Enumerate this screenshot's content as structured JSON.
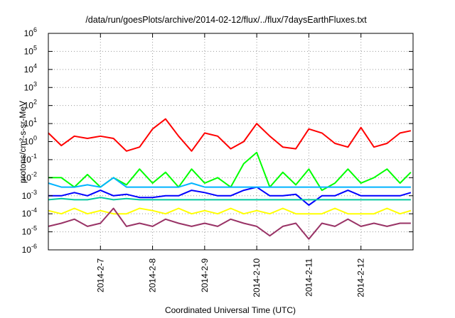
{
  "chart_data": {
    "type": "line",
    "title": "/data/run/goesPlots/archive/2014-02-12/flux/../flux/7daysEarthFluxes.txt",
    "xlabel": "Coordinated Universal Time (UTC)",
    "ylabel": "protons/cm²-s-sr-MeV",
    "yscale": "log",
    "ylim": [
      1e-06,
      1000000.0
    ],
    "y_tick_labels": [
      {
        "base": "10",
        "exp": "-6"
      },
      {
        "base": "10",
        "exp": "-5"
      },
      {
        "base": "10",
        "exp": "-4"
      },
      {
        "base": "10",
        "exp": "-3"
      },
      {
        "base": "10",
        "exp": "-2"
      },
      {
        "base": "10",
        "exp": "-1"
      },
      {
        "base": "10",
        "exp": "0"
      },
      {
        "base": "10",
        "exp": "1"
      },
      {
        "base": "10",
        "exp": "2"
      },
      {
        "base": "10",
        "exp": "3"
      },
      {
        "base": "10",
        "exp": "4"
      },
      {
        "base": "10",
        "exp": "5"
      },
      {
        "base": "10",
        "exp": "6"
      }
    ],
    "xlim": [
      "2014-02-06 00:00",
      "2014-02-13 00:00"
    ],
    "x_ticks": [
      "2014-2-7",
      "2014-2-8",
      "2014-2-9",
      "2014-2-10",
      "2014-2-11",
      "2014-2-12"
    ],
    "grid": true,
    "legend": "none",
    "series": [
      {
        "color": "#ff0000",
        "x_hours": [
          0,
          6,
          12,
          18,
          24,
          30,
          36,
          42,
          48,
          54,
          60,
          66,
          72,
          78,
          84,
          90,
          96,
          102,
          108,
          114,
          120,
          126,
          132,
          138,
          144,
          150,
          156,
          162,
          167
        ],
        "values": [
          3,
          0.6,
          2,
          1.5,
          2,
          1.5,
          0.3,
          0.5,
          5,
          18,
          2,
          0.3,
          3,
          2,
          0.4,
          1,
          10,
          2,
          0.5,
          0.4,
          5,
          3,
          0.8,
          0.5,
          6,
          0.5,
          0.8,
          3,
          4
        ]
      },
      {
        "color": "#00ff00",
        "x_hours": [
          0,
          6,
          12,
          18,
          24,
          30,
          36,
          42,
          48,
          54,
          60,
          66,
          72,
          78,
          84,
          90,
          96,
          102,
          108,
          114,
          120,
          126,
          132,
          138,
          144,
          150,
          156,
          162,
          167
        ],
        "values": [
          0.01,
          0.01,
          0.003,
          0.015,
          0.003,
          0.01,
          0.004,
          0.03,
          0.005,
          0.02,
          0.003,
          0.03,
          0.005,
          0.01,
          0.003,
          0.06,
          0.25,
          0.003,
          0.02,
          0.004,
          0.03,
          0.002,
          0.005,
          0.03,
          0.005,
          0.01,
          0.03,
          0.005,
          0.02
        ]
      },
      {
        "color": "#0000ff",
        "x_hours": [
          0,
          6,
          12,
          18,
          24,
          30,
          36,
          42,
          48,
          54,
          60,
          66,
          72,
          78,
          84,
          90,
          96,
          102,
          108,
          114,
          120,
          126,
          132,
          138,
          144,
          150,
          156,
          162,
          167
        ],
        "values": [
          0.001,
          0.001,
          0.0015,
          0.001,
          0.002,
          0.001,
          0.0012,
          0.0008,
          0.0008,
          0.001,
          0.001,
          0.002,
          0.0015,
          0.001,
          0.001,
          0.002,
          0.003,
          0.001,
          0.001,
          0.0012,
          0.0003,
          0.001,
          0.001,
          0.002,
          0.001,
          0.001,
          0.001,
          0.001,
          0.0015
        ]
      },
      {
        "color": "#00b4ff",
        "x_hours": [
          0,
          6,
          12,
          18,
          24,
          30,
          36,
          42,
          48,
          54,
          60,
          66,
          72,
          78,
          84,
          90,
          96,
          102,
          108,
          114,
          120,
          126,
          132,
          138,
          144,
          150,
          156,
          162,
          167
        ],
        "values": [
          0.005,
          0.003,
          0.003,
          0.004,
          0.003,
          0.01,
          0.003,
          0.003,
          0.003,
          0.003,
          0.003,
          0.005,
          0.003,
          0.003,
          0.003,
          0.003,
          0.003,
          0.003,
          0.003,
          0.003,
          0.003,
          0.003,
          0.003,
          0.003,
          0.003,
          0.003,
          0.003,
          0.003,
          0.003
        ]
      },
      {
        "color": "#00c8a0",
        "x_hours": [
          0,
          6,
          12,
          18,
          24,
          30,
          36,
          42,
          48,
          54,
          60,
          66,
          72,
          78,
          84,
          90,
          96,
          102,
          108,
          114,
          120,
          126,
          132,
          138,
          144,
          150,
          156,
          162,
          167
        ],
        "values": [
          0.0006,
          0.0007,
          0.0006,
          0.0006,
          0.0008,
          0.0006,
          0.0007,
          0.0006,
          0.0006,
          0.0006,
          0.0006,
          0.0006,
          0.0006,
          0.0006,
          0.0006,
          0.0006,
          0.0006,
          0.0006,
          0.0006,
          0.0006,
          0.0006,
          0.0006,
          0.0006,
          0.0006,
          0.0006,
          0.0006,
          0.0006,
          0.0006,
          0.0006
        ]
      },
      {
        "color": "#ffff00",
        "x_hours": [
          0,
          6,
          12,
          18,
          24,
          30,
          36,
          42,
          48,
          54,
          60,
          66,
          72,
          78,
          84,
          90,
          96,
          102,
          108,
          114,
          120,
          126,
          132,
          138,
          144,
          150,
          156,
          162,
          167
        ],
        "values": [
          0.00015,
          0.0001,
          0.0002,
          0.0001,
          0.00015,
          0.0001,
          0.0001,
          0.0002,
          0.00015,
          0.0001,
          0.0002,
          0.0001,
          0.00015,
          0.0001,
          0.0002,
          0.0001,
          0.00015,
          0.0001,
          0.0002,
          0.0001,
          0.0001,
          0.0001,
          0.0002,
          0.0001,
          0.0001,
          0.0001,
          0.0002,
          0.0001,
          0.00015
        ]
      },
      {
        "color": "#993366",
        "x_hours": [
          0,
          6,
          12,
          18,
          24,
          30,
          36,
          42,
          48,
          54,
          60,
          66,
          72,
          78,
          84,
          90,
          96,
          102,
          108,
          114,
          120,
          126,
          132,
          138,
          144,
          150,
          156,
          162,
          167
        ],
        "values": [
          2e-05,
          3e-05,
          5e-05,
          2e-05,
          3e-05,
          0.0002,
          2e-05,
          3e-05,
          2e-05,
          5e-05,
          3e-05,
          2e-05,
          3e-05,
          2e-05,
          5e-05,
          3e-05,
          2e-05,
          6e-06,
          2e-05,
          3e-05,
          4e-06,
          3e-05,
          2e-05,
          5e-05,
          2e-05,
          3e-05,
          2e-05,
          3e-05,
          3e-05
        ]
      }
    ]
  }
}
